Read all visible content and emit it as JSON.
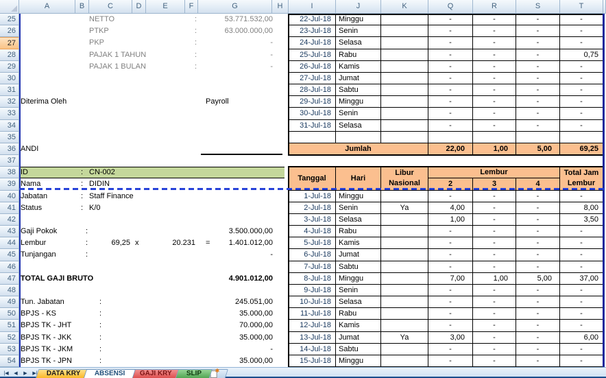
{
  "spreadsheet": {
    "visible_columns": [
      "A",
      "B",
      "C",
      "D",
      "E",
      "F",
      "G",
      "H",
      "I",
      "J",
      "K",
      "Q",
      "R",
      "S",
      "T"
    ],
    "first_row": 25,
    "last_row": 54,
    "active_row": 27
  },
  "payslip": {
    "tax_rows": [
      {
        "label": "NETTO",
        "colon": ":",
        "value": "53.771.532,00"
      },
      {
        "label": "PTKP",
        "colon": ":",
        "value": "63.000.000,00"
      },
      {
        "label": "PKP",
        "colon": ":",
        "value": "-"
      },
      {
        "label": "PAJAK 1 TAHUN",
        "colon": ":",
        "value": "-"
      },
      {
        "label": "PAJAK 1 BULAN",
        "colon": ":",
        "value": "-"
      }
    ],
    "received_by_label": "Diterima Oleh",
    "payroll_label": "Payroll",
    "signer_name": "ANDI",
    "identity": [
      {
        "label": "ID",
        "colon": ":",
        "value": "CN-002",
        "highlight": true
      },
      {
        "label": "Nama",
        "colon": ":",
        "value": "DIDIN"
      },
      {
        "label": "Jabatan",
        "colon": ":",
        "value": "Staff Finance"
      },
      {
        "label": "Status",
        "colon": ":",
        "value": "K/0"
      }
    ],
    "earnings": [
      {
        "label": "Gaji Pokok",
        "colon": ":",
        "value": "3.500.000,00"
      },
      {
        "label": "Lembur",
        "colon": ":",
        "hours": "69,25",
        "op1": "x",
        "rate": "20.231",
        "op2": "=",
        "value": "1.401.012,00"
      },
      {
        "label": "Tunjangan",
        "colon": ":",
        "value": "-"
      }
    ],
    "total": {
      "label": "TOTAL GAJI BRUTO",
      "value": "4.901.012,00"
    },
    "deductions": [
      {
        "label": "Tun. Jabatan",
        "colon": ":",
        "value": "245.051,00"
      },
      {
        "label": "BPJS - KS",
        "colon": ":",
        "value": "35.000,00"
      },
      {
        "label": "BPJS TK - JHT",
        "colon": ":",
        "value": "70.000,00"
      },
      {
        "label": "BPJS TK - JKK",
        "colon": ":",
        "value": "35.000,00"
      },
      {
        "label": "BPJS TK - JKM",
        "colon": ":",
        "value": "-"
      },
      {
        "label": "BPJS TK - JPN",
        "colon": ":",
        "value": "35.000,00"
      }
    ]
  },
  "overtime_prev": {
    "rows": [
      [
        "22-Jul-18",
        "Minggu",
        "",
        "-",
        "-",
        "-",
        "-"
      ],
      [
        "23-Jul-18",
        "Senin",
        "",
        "-",
        "-",
        "-",
        "-"
      ],
      [
        "24-Jul-18",
        "Selasa",
        "",
        "-",
        "-",
        "-",
        "-"
      ],
      [
        "25-Jul-18",
        "Rabu",
        "",
        "-",
        "-",
        "-",
        "0,75"
      ],
      [
        "26-Jul-18",
        "Kamis",
        "",
        "-",
        "-",
        "-",
        "-"
      ],
      [
        "27-Jul-18",
        "Jumat",
        "",
        "-",
        "-",
        "-",
        "-"
      ],
      [
        "28-Jul-18",
        "Sabtu",
        "",
        "-",
        "-",
        "-",
        "-"
      ],
      [
        "29-Jul-18",
        "Minggu",
        "",
        "-",
        "-",
        "-",
        "-"
      ],
      [
        "30-Jul-18",
        "Senin",
        "",
        "-",
        "-",
        "-",
        "-"
      ],
      [
        "31-Jul-18",
        "Selasa",
        "",
        "-",
        "-",
        "-",
        "-"
      ]
    ],
    "jumlah_label": "Jumlah",
    "jumlah_values": [
      "22,00",
      "1,00",
      "5,00",
      "69,25"
    ]
  },
  "overtime_current": {
    "header": {
      "tanggal": "Tanggal",
      "hari": "Hari",
      "libur_line1": "Libur",
      "libur_line2": "Nasional",
      "lembur": "Lembur",
      "lembur_sub": [
        "2",
        "3",
        "4"
      ],
      "total_line1": "Total Jam",
      "total_line2": "Lembur"
    },
    "rows": [
      [
        "1-Jul-18",
        "Minggu",
        "",
        "-",
        "-",
        "-",
        "-"
      ],
      [
        "2-Jul-18",
        "Senin",
        "Ya",
        "4,00",
        "-",
        "-",
        "8,00"
      ],
      [
        "3-Jul-18",
        "Selasa",
        "",
        "1,00",
        "-",
        "-",
        "3,50"
      ],
      [
        "4-Jul-18",
        "Rabu",
        "",
        "-",
        "-",
        "-",
        "-"
      ],
      [
        "5-Jul-18",
        "Kamis",
        "",
        "-",
        "-",
        "-",
        "-"
      ],
      [
        "6-Jul-18",
        "Jumat",
        "",
        "-",
        "-",
        "-",
        "-"
      ],
      [
        "7-Jul-18",
        "Sabtu",
        "",
        "-",
        "-",
        "-",
        "-"
      ],
      [
        "8-Jul-18",
        "Minggu",
        "",
        "7,00",
        "1,00",
        "5,00",
        "37,00"
      ],
      [
        "9-Jul-18",
        "Senin",
        "",
        "-",
        "-",
        "-",
        "-"
      ],
      [
        "10-Jul-18",
        "Selasa",
        "",
        "-",
        "-",
        "-",
        "-"
      ],
      [
        "11-Jul-18",
        "Rabu",
        "",
        "-",
        "-",
        "-",
        "-"
      ],
      [
        "12-Jul-18",
        "Kamis",
        "",
        "-",
        "-",
        "-",
        "-"
      ],
      [
        "13-Jul-18",
        "Jumat",
        "Ya",
        "3,00",
        "-",
        "-",
        "6,00"
      ],
      [
        "14-Jul-18",
        "Sabtu",
        "",
        "-",
        "-",
        "-",
        "-"
      ],
      [
        "15-Jul-18",
        "Minggu",
        "",
        "-",
        "-",
        "-",
        "-"
      ]
    ]
  },
  "tabs": {
    "items": [
      {
        "label": "DATA KRY"
      },
      {
        "label": "ABSENSI",
        "active": true
      },
      {
        "label": "GAJI KRY"
      },
      {
        "label": "SLIP"
      }
    ]
  },
  "nav_icons": {
    "first": "|◀",
    "prev": "◀",
    "next": "▶",
    "last": "▶|"
  },
  "colors": {
    "table_header_fill": "#FBBF8F",
    "id_band_fill": "#C4D79B",
    "page_break_blue": "#2742D8",
    "tab_orange": "#FBB829",
    "tab_red": "#DE5050",
    "tab_green": "#53A653"
  }
}
